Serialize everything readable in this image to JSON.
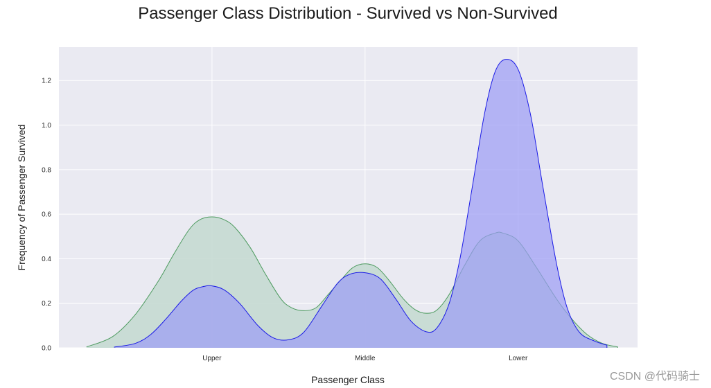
{
  "chart_data": {
    "type": "area",
    "title": "Passenger Class Distribution - Survived vs Non-Survived",
    "xlabel": "Passenger Class",
    "ylabel": "Frequency of Passenger Survived",
    "categories": [
      "Upper",
      "Middle",
      "Lower"
    ],
    "xlim": [
      0.05,
      3.05
    ],
    "ylim": [
      0,
      1.35
    ],
    "yticks": [
      0.0,
      0.2,
      0.4,
      0.6,
      0.8,
      1.0,
      1.2
    ],
    "ytick_labels": [
      "0.0",
      "0.2",
      "0.4",
      "0.6",
      "0.8",
      "1.0",
      "1.2"
    ],
    "grid": true,
    "series": [
      {
        "color": "#4c9a5e",
        "fill": "#c5dad2",
        "points": [
          [
            0.18,
            0.004
          ],
          [
            0.35,
            0.05
          ],
          [
            0.5,
            0.15
          ],
          [
            0.65,
            0.3
          ],
          [
            0.75,
            0.42
          ],
          [
            0.85,
            0.53
          ],
          [
            0.92,
            0.575
          ],
          [
            1.0,
            0.588
          ],
          [
            1.08,
            0.575
          ],
          [
            1.15,
            0.54
          ],
          [
            1.25,
            0.45
          ],
          [
            1.35,
            0.33
          ],
          [
            1.45,
            0.22
          ],
          [
            1.52,
            0.18
          ],
          [
            1.6,
            0.167
          ],
          [
            1.68,
            0.18
          ],
          [
            1.76,
            0.24
          ],
          [
            1.85,
            0.31
          ],
          [
            1.92,
            0.36
          ],
          [
            2.0,
            0.377
          ],
          [
            2.08,
            0.36
          ],
          [
            2.16,
            0.3
          ],
          [
            2.25,
            0.22
          ],
          [
            2.33,
            0.17
          ],
          [
            2.4,
            0.155
          ],
          [
            2.47,
            0.17
          ],
          [
            2.55,
            0.24
          ],
          [
            2.65,
            0.37
          ],
          [
            2.75,
            0.48
          ],
          [
            2.85,
            0.515
          ],
          [
            2.9,
            0.515
          ],
          [
            3.0,
            0.48
          ],
          [
            3.12,
            0.36
          ],
          [
            3.25,
            0.22
          ],
          [
            3.35,
            0.13
          ],
          [
            3.45,
            0.06
          ],
          [
            3.55,
            0.02
          ],
          [
            3.65,
            0.004
          ]
        ]
      },
      {
        "color": "#1a1ae6",
        "fill": "#9b9bf5",
        "points": [
          [
            0.36,
            0.003
          ],
          [
            0.5,
            0.02
          ],
          [
            0.6,
            0.06
          ],
          [
            0.7,
            0.13
          ],
          [
            0.8,
            0.21
          ],
          [
            0.88,
            0.26
          ],
          [
            0.95,
            0.276
          ],
          [
            1.0,
            0.278
          ],
          [
            1.08,
            0.26
          ],
          [
            1.18,
            0.2
          ],
          [
            1.3,
            0.1
          ],
          [
            1.4,
            0.045
          ],
          [
            1.5,
            0.036
          ],
          [
            1.6,
            0.07
          ],
          [
            1.72,
            0.19
          ],
          [
            1.82,
            0.29
          ],
          [
            1.9,
            0.33
          ],
          [
            2.0,
            0.337
          ],
          [
            2.1,
            0.31
          ],
          [
            2.2,
            0.22
          ],
          [
            2.3,
            0.12
          ],
          [
            2.4,
            0.072
          ],
          [
            2.47,
            0.09
          ],
          [
            2.55,
            0.2
          ],
          [
            2.62,
            0.4
          ],
          [
            2.7,
            0.72
          ],
          [
            2.78,
            1.05
          ],
          [
            2.85,
            1.24
          ],
          [
            2.92,
            1.295
          ],
          [
            3.0,
            1.25
          ],
          [
            3.08,
            1.05
          ],
          [
            3.16,
            0.73
          ],
          [
            3.25,
            0.38
          ],
          [
            3.32,
            0.18
          ],
          [
            3.4,
            0.07
          ],
          [
            3.5,
            0.03
          ],
          [
            3.58,
            0.012
          ]
        ]
      }
    ]
  },
  "watermark": "CSDN @代码骑士"
}
